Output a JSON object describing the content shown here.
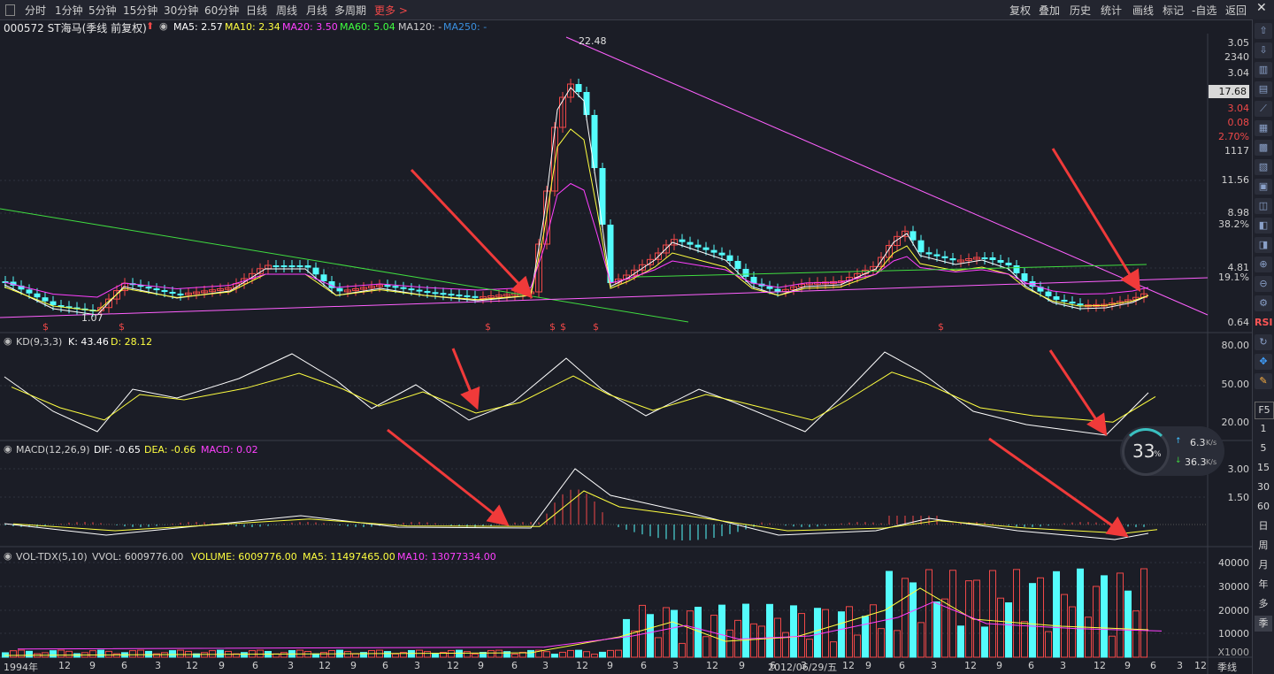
{
  "toolbar": {
    "periods": [
      "分时",
      "1分钟",
      "5分钟",
      "15分钟",
      "30分钟",
      "60分钟",
      "日线",
      "周线",
      "月线",
      "多周期"
    ],
    "more": "更多 >",
    "right_buttons": [
      "复权",
      "叠加",
      "历史",
      "统计",
      "画线",
      "标记",
      "-自选",
      "返回"
    ]
  },
  "header": {
    "code_name": "000572 ST海马(季线 前复权)",
    "ma5": "MA5: 2.57",
    "ma10": "MA10: 2.34",
    "ma20": "MA20: 3.50",
    "ma60": "MA60: 5.04",
    "ma120": "MA120: -",
    "ma250": "MA250: -"
  },
  "main_chart": {
    "peak_label": "22.48",
    "low_label": "1.07",
    "price_axis": [
      "3.05",
      "2340",
      "3.04",
      "17.68",
      "3.04",
      "0.08",
      "2.70%",
      "1117",
      "11.56",
      "8.98",
      "38.2%",
      "4.81",
      "19.1%",
      "0.64"
    ],
    "s_markers": [
      "$",
      "$",
      "$",
      "$",
      "$",
      "$",
      "$"
    ]
  },
  "kd": {
    "title": "KD(9,3,3)",
    "k": "K: 43.46",
    "d": "D: 28.12",
    "axis": [
      "80.00",
      "50.00",
      "20.00"
    ]
  },
  "macd": {
    "title": "MACD(12,26,9)",
    "dif": "DIF: -0.65",
    "dea": "DEA: -0.66",
    "macd": "MACD: 0.02",
    "axis": [
      "3.00",
      "1.50"
    ]
  },
  "vol": {
    "title": "VOL-TDX(5,10)",
    "vvol": "VVOL: 6009776.00",
    "volume": "VOLUME: 6009776.00",
    "ma5": "MA5: 11497465.00",
    "ma10": "MA10: 13077334.00",
    "axis": [
      "40000",
      "30000",
      "20000",
      "10000"
    ],
    "unit": "X1000"
  },
  "speed": {
    "percent": "33",
    "unit": "%",
    "up": "6.3",
    "down": "36.3",
    "speed_unit": "K/s"
  },
  "xaxis": [
    "1994年",
    "12",
    "9",
    "6",
    "3",
    "12",
    "9",
    "6",
    "3",
    "12",
    "9",
    "6",
    "3",
    "12",
    "9",
    "6",
    "3",
    "12",
    "9",
    "6",
    "3",
    "12",
    "9",
    "6",
    "3",
    "12",
    "9",
    "6",
    "3",
    "12",
    "2012/06/29/五",
    "9",
    "6",
    "3",
    "12",
    "9",
    "6",
    "3",
    "12",
    "9"
  ],
  "period_label": "季线",
  "sidebar_labels": [
    "RSI",
    "F5",
    "1",
    "5",
    "15",
    "30",
    "60",
    "日",
    "周",
    "月",
    "年",
    "多",
    "季"
  ],
  "colors": {
    "bg": "#1b1d26",
    "up": "#f04848",
    "down": "#54fcfc",
    "ma5": "#ffffff",
    "ma10": "#ffff40",
    "ma20": "#ff40ff",
    "ma60": "#40ff40",
    "arrow": "#f03a3a"
  }
}
